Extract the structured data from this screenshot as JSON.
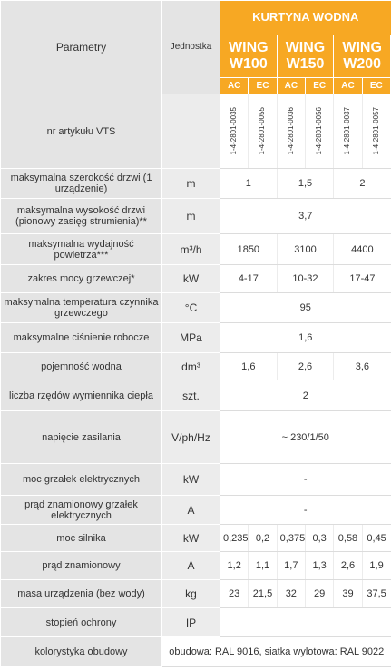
{
  "header": {
    "title": "KURTYNA WODNA",
    "parameter": "Parametry",
    "unit": "Jednostka",
    "models": [
      "WING W100",
      "WING W150",
      "WING W200"
    ],
    "variants": [
      "AC",
      "EC",
      "AC",
      "EC",
      "AC",
      "EC"
    ]
  },
  "rows": [
    {
      "label": "nr artykułu VTS",
      "codes": [
        "1-4-2801-0035",
        "1-4-2801-0055",
        "1-4-2801-0036",
        "1-4-2801-0056",
        "1-4-2801-0037",
        "1-4-2801-0057"
      ]
    },
    {
      "label": "maksymalna szerokość drzwi (1 urządzenie)",
      "unit": "m",
      "cells": [
        "1",
        "1,5",
        "2"
      ]
    },
    {
      "label": "maksymalna wysokość drzwi (pionowy zasięg strumienia)**",
      "unit": "m",
      "cells": [
        "3,7"
      ]
    },
    {
      "label": "maksymalna wydajność powietrza***",
      "unit": "m³/h",
      "cells": [
        "1850",
        "3100",
        "4400"
      ]
    },
    {
      "label": "zakres mocy grzewczej*",
      "unit": "kW",
      "cells": [
        "4-17",
        "10-32",
        "17-47"
      ]
    },
    {
      "label": "maksymalna temperatura czynnika grzewczego",
      "unit": "°C",
      "cells": [
        "95"
      ]
    },
    {
      "label": "maksymalne ciśnienie robocze",
      "unit": "MPa",
      "cells": [
        "1,6"
      ]
    },
    {
      "label": "pojemność wodna",
      "unit": "dm³",
      "cells": [
        "1,6",
        "2,6",
        "3,6"
      ]
    },
    {
      "label": "liczba rzędów wymiennika ciepła",
      "unit": "szt.",
      "cells": [
        "2"
      ]
    },
    {
      "label": "napięcie zasilania",
      "unit": "V/ph/Hz",
      "cells": [
        "~ 230/1/50"
      ]
    },
    {
      "label": "moc grzałek elektrycznych",
      "unit": "kW",
      "cells": [
        "-"
      ]
    },
    {
      "label": "prąd znamionowy grzałek elektrycznych",
      "unit": "A",
      "cells": [
        "-"
      ]
    },
    {
      "label": "moc silnika",
      "unit": "kW",
      "cells": [
        "0,235",
        "0,2",
        "0,375",
        "0,3",
        "0,58",
        "0,45"
      ]
    },
    {
      "label": "prąd znamionowy",
      "unit": "A",
      "cells": [
        "1,2",
        "1,1",
        "1,7",
        "1,3",
        "2,6",
        "1,9"
      ]
    },
    {
      "label": "masa urządzenia (bez wody)",
      "unit": "kg",
      "cells": [
        "23",
        "21,5",
        "32",
        "29",
        "39",
        "37,5"
      ]
    },
    {
      "label": "stopień ochrony",
      "unit": "IP",
      "cells": []
    },
    {
      "label": "kolorystyka obudowy",
      "value": "obudowa: RAL 9016, siatka wylotowa: RAL 9022"
    }
  ]
}
